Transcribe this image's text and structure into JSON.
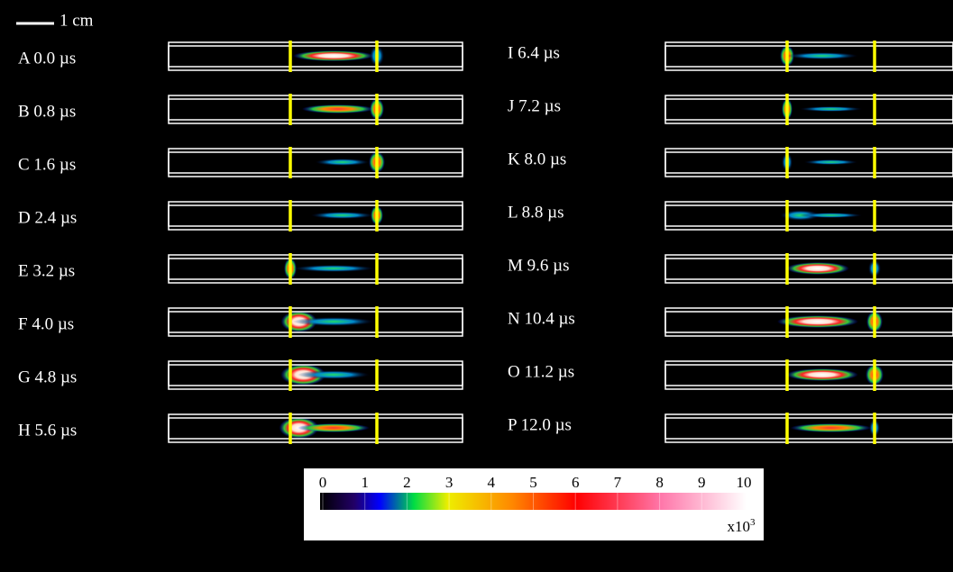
{
  "scale_bar": {
    "label": "1 cm"
  },
  "panels": [
    {
      "label": "A 0.0 µs"
    },
    {
      "label": "B 0.8 µs"
    },
    {
      "label": "C 1.6 µs"
    },
    {
      "label": "D 2.4 µs"
    },
    {
      "label": "E 3.2 µs"
    },
    {
      "label": "F 4.0 µs"
    },
    {
      "label": "G 4.8 µs"
    },
    {
      "label": "H 5.6 µs"
    },
    {
      "label": "I 6.4 µs"
    },
    {
      "label": "J 7.2 µs"
    },
    {
      "label": "K 8.0 µs"
    },
    {
      "label": "L 8.8 µs"
    },
    {
      "label": "M 9.6 µs"
    },
    {
      "label": "N 10.4 µs"
    },
    {
      "label": "O 11.2 µs"
    },
    {
      "label": "P 12.0 µs"
    }
  ],
  "colorbar": {
    "ticks": [
      0,
      1,
      2,
      3,
      4,
      5,
      6,
      7,
      8,
      9,
      10
    ],
    "multiplier": "x10",
    "multiplier_exponent": "3"
  }
}
